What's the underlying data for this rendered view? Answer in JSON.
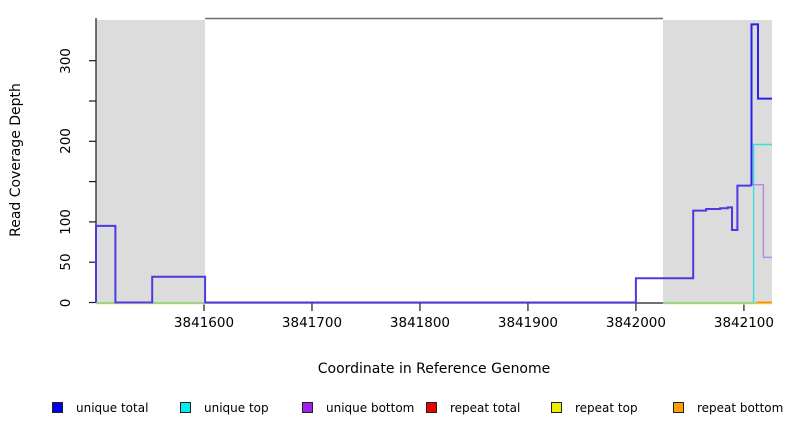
{
  "figure": {
    "xlabel": "Coordinate in Reference Genome",
    "ylabel": "Read Coverage Depth",
    "background_color": "#ffffff",
    "shaded_region_color": "#dcdcdc",
    "axis_color": "#1a1a1a",
    "top_border_color": "#6f6f6f"
  },
  "legend": {
    "items": [
      {
        "label": "unique total",
        "color": "#0000ee"
      },
      {
        "label": "unique top",
        "color": "#00eeee"
      },
      {
        "label": "unique bottom",
        "color": "#a020f0"
      },
      {
        "label": "repeat total",
        "color": "#ee0000"
      },
      {
        "label": "repeat top",
        "color": "#eeee00"
      },
      {
        "label": "repeat bottom",
        "color": "#ffa000"
      }
    ]
  },
  "chart_data": {
    "type": "line",
    "subtype": "step-coverage",
    "title": "",
    "xlabel": "Coordinate in Reference Genome",
    "ylabel": "Read Coverage Depth",
    "xlim": [
      3841500,
      3842126
    ],
    "ylim": [
      0,
      352
    ],
    "x_ticks": [
      3841600,
      3841700,
      3841800,
      3841900,
      3842000,
      3842100
    ],
    "y_ticks_labeled": [
      0,
      50,
      100,
      200,
      300
    ],
    "y_ticks_minor": [
      150,
      250
    ],
    "grid": false,
    "legend_position": "bottom",
    "shaded_repeat_regions": [
      [
        3841500,
        3841601
      ],
      [
        3842025,
        3842126
      ]
    ],
    "top_border_span": [
      3841601,
      3842025
    ],
    "series": [
      {
        "name": "unique total",
        "steps": [
          [
            3841500,
            3841518,
            95
          ],
          [
            3841518,
            3841552,
            0
          ],
          [
            3841552,
            3841600,
            32
          ],
          [
            3841600,
            3842000,
            0
          ],
          [
            3842000,
            3842053,
            30
          ],
          [
            3842053,
            3842065,
            114
          ],
          [
            3842065,
            3842078,
            116
          ],
          [
            3842078,
            3842089,
            118
          ],
          [
            3842089,
            3842094,
            90
          ],
          [
            3842094,
            3842107,
            145
          ],
          [
            3842107,
            3842113,
            345
          ],
          [
            3842113,
            3842126,
            253
          ]
        ]
      },
      {
        "name": "unique top",
        "steps": [
          [
            3841500,
            3842109,
            0
          ],
          [
            3842109,
            3842126,
            196
          ]
        ]
      },
      {
        "name": "unique bottom",
        "steps": [
          [
            3842107,
            3842118,
            146
          ],
          [
            3842118,
            3842126,
            56
          ]
        ]
      },
      {
        "name": "repeat total",
        "steps": [
          [
            3841500,
            3841600,
            0
          ],
          [
            3842025,
            3842126,
            0
          ]
        ]
      },
      {
        "name": "repeat top",
        "steps": [
          [
            3841500,
            3841600,
            0
          ],
          [
            3842025,
            3842126,
            0
          ]
        ]
      },
      {
        "name": "repeat bottom",
        "steps": [
          [
            3841500,
            3841600,
            0
          ],
          [
            3842025,
            3842126,
            0
          ]
        ]
      }
    ],
    "draw_segments": [
      {
        "series": "repeat top",
        "name": "repeat-top-zero-left",
        "color": "#f0eca6",
        "width": 1.2,
        "dy": 1.4,
        "points": [
          [
            3841500,
            0
          ],
          [
            3841601,
            0
          ]
        ]
      },
      {
        "series": "repeat top",
        "name": "repeat-top-zero-right",
        "color": "#f0eca6",
        "width": 1.2,
        "dy": 1.4,
        "points": [
          [
            3842025,
            0
          ],
          [
            3842126,
            0
          ]
        ]
      },
      {
        "series": "unique top over repeat top",
        "name": "zero-line-left",
        "color": "#8de28d",
        "width": 1.2,
        "dy": 0,
        "points": [
          [
            3841500,
            0
          ],
          [
            3841601,
            0
          ]
        ]
      },
      {
        "series": "unique top over repeat top",
        "name": "zero-line-right",
        "color": "#8de28d",
        "width": 1.2,
        "dy": 0,
        "points": [
          [
            3842025,
            0
          ],
          [
            3842126,
            0
          ]
        ]
      },
      {
        "series": "unique total with unique bottom overlap",
        "name": "unique-total-main",
        "color": "#4b39e2",
        "width": 2,
        "dy": 0,
        "points": [
          [
            3841500,
            0
          ],
          [
            3841500,
            95
          ],
          [
            3841518,
            95
          ],
          [
            3841518,
            0
          ],
          [
            3841552,
            0
          ],
          [
            3841552,
            32
          ],
          [
            3841601,
            32
          ],
          [
            3841601,
            0
          ],
          [
            3842000,
            0
          ],
          [
            3842000,
            30
          ],
          [
            3842053,
            30
          ],
          [
            3842053,
            114
          ],
          [
            3842065,
            114
          ],
          [
            3842065,
            116
          ],
          [
            3842078,
            116
          ],
          [
            3842078,
            117
          ],
          [
            3842085,
            117
          ],
          [
            3842085,
            118
          ],
          [
            3842089,
            118
          ],
          [
            3842089,
            90
          ],
          [
            3842094,
            90
          ],
          [
            3842094,
            145
          ],
          [
            3842107,
            145
          ]
        ]
      },
      {
        "series": "unique top",
        "name": "unique-top-line",
        "color": "#3adce6",
        "width": 1.4,
        "dy": 0,
        "points": [
          [
            3842109,
            0
          ],
          [
            3842109,
            196
          ],
          [
            3842126,
            196
          ]
        ]
      },
      {
        "series": "unique bottom",
        "name": "unique-bottom-line",
        "color": "#b78ce8",
        "width": 1.5,
        "dy": 0,
        "points": [
          [
            3842107,
            146
          ],
          [
            3842118,
            146
          ],
          [
            3842118,
            56
          ],
          [
            3842126,
            56
          ]
        ]
      },
      {
        "series": "unique total",
        "name": "unique-total-spike",
        "color": "#2a21ec",
        "width": 2,
        "dy": 0,
        "points": [
          [
            3842107,
            145
          ],
          [
            3842107,
            345
          ],
          [
            3842113,
            345
          ],
          [
            3842113,
            253
          ],
          [
            3842126,
            253
          ]
        ]
      },
      {
        "series": "repeat bottom",
        "name": "repeat-bottom-line",
        "color": "#ff9100",
        "width": 2,
        "dy": 0,
        "points": [
          [
            3842112,
            0
          ],
          [
            3842126,
            0
          ]
        ]
      }
    ]
  }
}
